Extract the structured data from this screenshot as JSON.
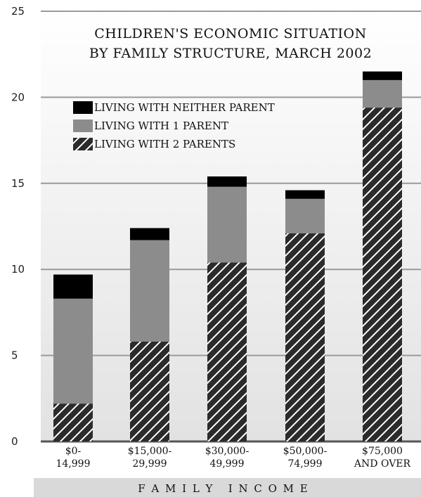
{
  "chart_data": {
    "type": "bar",
    "stacked": true,
    "title": [
      "CHILDREN'S ECONOMIC SITUATION",
      "BY FAMILY STRUCTURE, MARCH 2002"
    ],
    "xlabel": "F A M I L Y   I N C O M E",
    "ylabel": "",
    "ylim": [
      0,
      25
    ],
    "yticks": [
      0,
      5,
      10,
      15,
      20,
      25
    ],
    "grid": true,
    "legend_position": "top-left",
    "categories": [
      [
        "$0-",
        "14,999"
      ],
      [
        "$15,000-",
        "29,999"
      ],
      [
        "$30,000-",
        "49,999"
      ],
      [
        "$50,000-",
        "74,999"
      ],
      [
        "$75,000",
        "AND OVER"
      ]
    ],
    "series": [
      {
        "name": "LIVING WITH 2 PARENTS",
        "values": [
          2.2,
          5.8,
          10.4,
          12.1,
          19.4
        ],
        "style": "hatched",
        "color": "#2b2b2b"
      },
      {
        "name": "LIVING WITH 1 PARENT",
        "values": [
          6.1,
          5.9,
          4.4,
          2.0,
          1.6
        ],
        "style": "solid",
        "color": "#8c8c8c"
      },
      {
        "name": "LIVING WITH NEITHER PARENT",
        "values": [
          1.4,
          0.7,
          0.6,
          0.5,
          0.5
        ],
        "style": "solid",
        "color": "#000000"
      }
    ],
    "legend_order": [
      "LIVING WITH NEITHER PARENT",
      "LIVING WITH 1 PARENT",
      "LIVING WITH 2 PARENTS"
    ],
    "colors": {
      "plot_bg": "#e6e6e6",
      "grid": "#9a9a9a",
      "xlabel_band": "#d9d9d9"
    }
  }
}
